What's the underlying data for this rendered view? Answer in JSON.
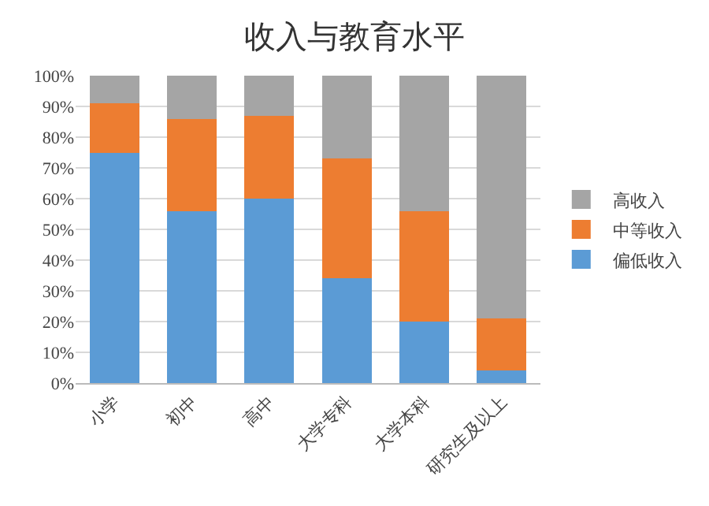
{
  "chart_data": {
    "type": "bar",
    "title": "收入与教育水平",
    "stacked": true,
    "categories": [
      "小学",
      "初中",
      "高中",
      "大学专科",
      "大学本科",
      "研究生及以上"
    ],
    "series": [
      {
        "name": "偏低收入",
        "color": "#5b9bd5",
        "values": [
          75,
          56,
          60,
          34,
          20,
          4
        ]
      },
      {
        "name": "中等收入",
        "color": "#ed7d31",
        "values": [
          16,
          30,
          27,
          39,
          36,
          17
        ]
      },
      {
        "name": "高收入",
        "color": "#a5a5a5",
        "values": [
          9,
          14,
          13,
          27,
          44,
          79
        ]
      }
    ],
    "ylim": [
      0,
      100
    ],
    "yticks": [
      {
        "value": 0,
        "label": "0%"
      },
      {
        "value": 10,
        "label": "10%"
      },
      {
        "value": 20,
        "label": "20%"
      },
      {
        "value": 30,
        "label": "30%"
      },
      {
        "value": 40,
        "label": "40%"
      },
      {
        "value": 50,
        "label": "50%"
      },
      {
        "value": 60,
        "label": "60%"
      },
      {
        "value": 70,
        "label": "70%"
      },
      {
        "value": 80,
        "label": "80%"
      },
      {
        "value": 90,
        "label": "90%"
      },
      {
        "value": 100,
        "label": "100%"
      }
    ],
    "grid": "y",
    "legend": "right"
  }
}
